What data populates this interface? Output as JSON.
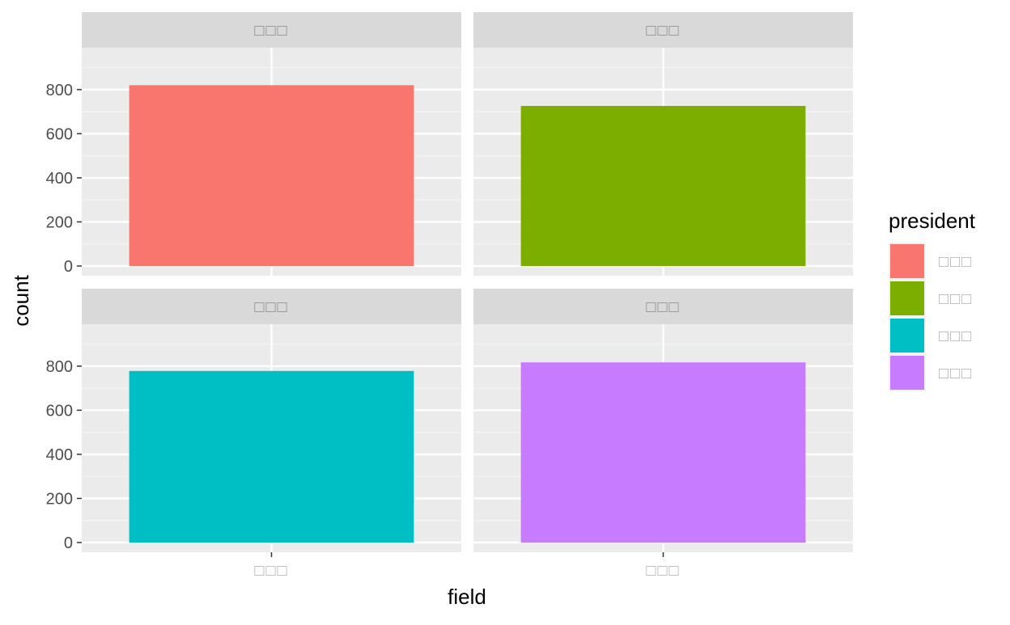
{
  "chart_data": {
    "type": "bar",
    "facet_layout": "2x2 grid",
    "xlabel": "field",
    "ylabel": "count",
    "ylim": [
      0,
      990
    ],
    "y_ticks": [
      0,
      200,
      400,
      600,
      800
    ],
    "grid": true,
    "legend": {
      "title": "president",
      "position": "right",
      "entries": [
        {
          "label": "□□□",
          "color": "#F8766D"
        },
        {
          "label": "□□□",
          "color": "#7CAE00"
        },
        {
          "label": "□□□",
          "color": "#00BFC4"
        },
        {
          "label": "□□□",
          "color": "#C77CFF"
        }
      ]
    },
    "facets": [
      {
        "strip": "□□□",
        "category": "□□□",
        "value": 820,
        "color": "#F8766D"
      },
      {
        "strip": "□□□",
        "category": "□□□",
        "value": 726,
        "color": "#7CAE00"
      },
      {
        "strip": "□□□",
        "category": "□□□",
        "value": 778,
        "color": "#00BFC4"
      },
      {
        "strip": "□□□",
        "category": "□□□",
        "value": 817,
        "color": "#C77CFF"
      }
    ],
    "x_tick_labels": [
      "□□□",
      "□□□"
    ]
  }
}
